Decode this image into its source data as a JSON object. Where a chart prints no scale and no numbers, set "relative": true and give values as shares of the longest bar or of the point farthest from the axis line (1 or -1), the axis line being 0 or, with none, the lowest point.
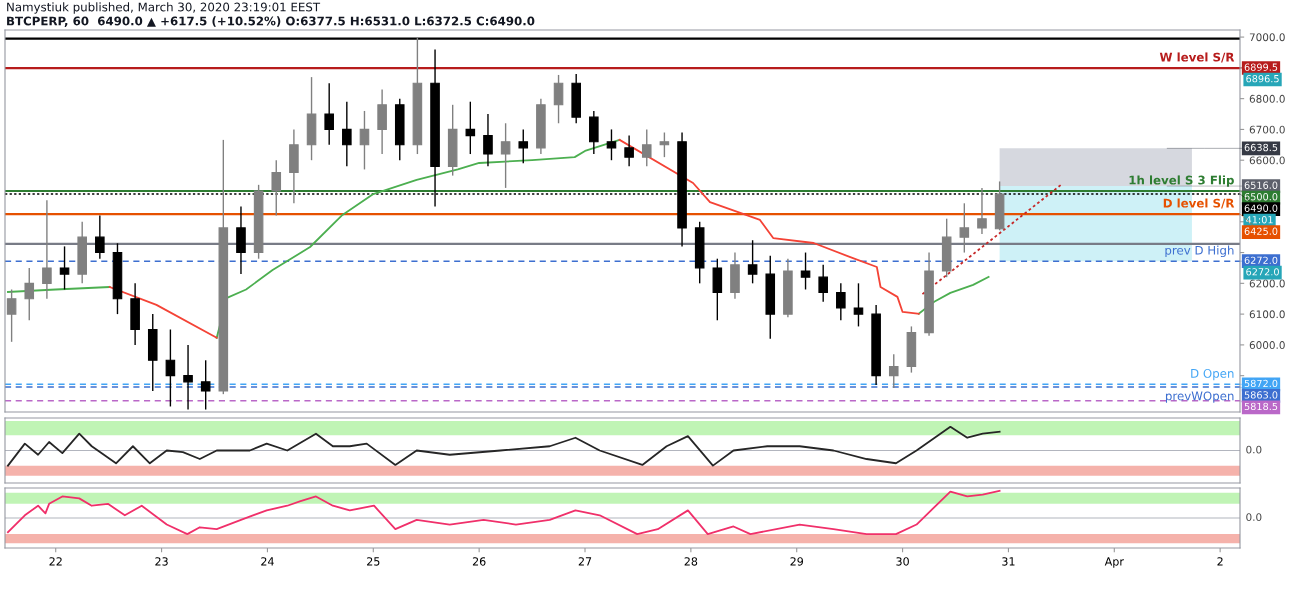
{
  "chart_data": [
    {
      "type": "candlestick",
      "xlim": [
        "2020-03-21T12:30",
        "2020-04-02T04:30"
      ],
      "ylim": [
        5782,
        7023
      ],
      "yticks": [
        {
          "value": 5900,
          "label": null
        },
        {
          "value": 6000,
          "label": "6000.0"
        },
        {
          "value": 6100,
          "label": "6100.0"
        },
        {
          "value": 6200,
          "label": "6200.0"
        },
        {
          "value": 6300,
          "label": null
        },
        {
          "value": 6400,
          "label": null
        },
        {
          "value": 6500,
          "label": null
        },
        {
          "value": 6600,
          "label": "6600.0"
        },
        {
          "value": 6700,
          "label": "6700.0"
        },
        {
          "value": 6800,
          "label": "6800.0"
        },
        {
          "value": 6900,
          "label": null
        },
        {
          "value": 7000,
          "label": "7000.0"
        }
      ],
      "tick_labels": "y",
      "grid": false,
      "colors": [
        "#808080",
        "#808080",
        "#808080",
        "#000000",
        "#808080",
        "#000000",
        "#000000",
        "#000000",
        "#000000",
        "#000000",
        "#000000",
        "#000000",
        "#808080",
        "#000000",
        "#808080",
        "#808080",
        "#808080",
        "#808080",
        "#000000",
        "#000000",
        "#808080",
        "#808080",
        "#000000",
        "#808080",
        "#000000",
        "#808080",
        "#000000",
        "#000000",
        "#808080",
        "#000000",
        "#808080",
        "#808080",
        "#000000",
        "#000000",
        "#000000",
        "#000000",
        "#808080",
        "#808080",
        "#000000",
        "#000000",
        "#000000",
        "#808080",
        "#000000",
        "#000000",
        "#808080",
        "#000000",
        "#000000",
        "#000000",
        "#000000",
        "#000000",
        "#808080",
        "#808080",
        "#808080",
        "#808080",
        "#808080",
        "#808080",
        "#808080"
      ],
      "x": [
        "2020-03-21T14:00",
        "2020-03-21T18:00",
        "2020-03-21T22:00",
        "2020-03-22T02:00",
        "2020-03-22T06:00",
        "2020-03-22T10:00",
        "2020-03-22T14:00",
        "2020-03-22T18:00",
        "2020-03-22T22:00",
        "2020-03-23T02:00",
        "2020-03-23T06:00",
        "2020-03-23T10:00",
        "2020-03-23T14:00",
        "2020-03-23T18:00",
        "2020-03-23T22:00",
        "2020-03-24T02:00",
        "2020-03-24T06:00",
        "2020-03-24T10:00",
        "2020-03-24T14:00",
        "2020-03-24T18:00",
        "2020-03-24T22:00",
        "2020-03-25T02:00",
        "2020-03-25T06:00",
        "2020-03-25T10:00",
        "2020-03-25T14:00",
        "2020-03-25T18:00",
        "2020-03-25T22:00",
        "2020-03-26T02:00",
        "2020-03-26T06:00",
        "2020-03-26T10:00",
        "2020-03-26T14:00",
        "2020-03-26T18:00",
        "2020-03-26T22:00",
        "2020-03-27T02:00",
        "2020-03-27T06:00",
        "2020-03-27T10:00",
        "2020-03-27T14:00",
        "2020-03-27T18:00",
        "2020-03-27T22:00",
        "2020-03-28T02:00",
        "2020-03-28T06:00",
        "2020-03-28T10:00",
        "2020-03-28T14:00",
        "2020-03-28T18:00",
        "2020-03-28T22:00",
        "2020-03-29T02:00",
        "2020-03-29T06:00",
        "2020-03-29T10:00",
        "2020-03-29T14:00",
        "2020-03-29T18:00",
        "2020-03-29T22:00",
        "2020-03-30T02:00",
        "2020-03-30T06:00",
        "2020-03-30T10:00",
        "2020-03-30T14:00",
        "2020-03-30T18:00",
        "2020-03-30T22:00"
      ],
      "ohlc": [
        [
          6100,
          6180,
          6010,
          6150
        ],
        [
          6150,
          6250,
          6080,
          6200
        ],
        [
          6200,
          6470,
          6150,
          6250
        ],
        [
          6250,
          6320,
          6180,
          6230
        ],
        [
          6230,
          6400,
          6200,
          6350
        ],
        [
          6350,
          6420,
          6280,
          6300
        ],
        [
          6300,
          6330,
          6100,
          6150
        ],
        [
          6150,
          6200,
          6000,
          6050
        ],
        [
          6050,
          6100,
          5850,
          5950
        ],
        [
          5950,
          6050,
          5800,
          5900
        ],
        [
          5900,
          6000,
          5790,
          5880
        ],
        [
          5880,
          5950,
          5790,
          5850
        ],
        [
          5850,
          6666,
          5840,
          6380
        ],
        [
          6380,
          6450,
          6230,
          6300
        ],
        [
          6300,
          6520,
          6280,
          6500
        ],
        [
          6500,
          6600,
          6420,
          6560
        ],
        [
          6560,
          6700,
          6460,
          6650
        ],
        [
          6650,
          6870,
          6600,
          6750
        ],
        [
          6750,
          6850,
          6650,
          6700
        ],
        [
          6700,
          6790,
          6580,
          6650
        ],
        [
          6650,
          6760,
          6570,
          6700
        ],
        [
          6700,
          6830,
          6620,
          6780
        ],
        [
          6780,
          6800,
          6600,
          6650
        ],
        [
          6650,
          7000,
          6620,
          6850
        ],
        [
          6850,
          6960,
          6450,
          6580
        ],
        [
          6580,
          6780,
          6550,
          6700
        ],
        [
          6700,
          6790,
          6620,
          6680
        ],
        [
          6680,
          6750,
          6580,
          6620
        ],
        [
          6620,
          6720,
          6510,
          6660
        ],
        [
          6660,
          6700,
          6590,
          6640
        ],
        [
          6640,
          6800,
          6620,
          6780
        ],
        [
          6780,
          6877,
          6720,
          6850
        ],
        [
          6850,
          6880,
          6720,
          6740
        ],
        [
          6740,
          6760,
          6620,
          6660
        ],
        [
          6660,
          6700,
          6600,
          6640
        ],
        [
          6640,
          6680,
          6580,
          6610
        ],
        [
          6610,
          6700,
          6580,
          6650
        ],
        [
          6650,
          6690,
          6610,
          6660
        ],
        [
          6660,
          6690,
          6320,
          6380
        ],
        [
          6380,
          6400,
          6200,
          6250
        ],
        [
          6250,
          6280,
          6080,
          6170
        ],
        [
          6170,
          6300,
          6150,
          6260
        ],
        [
          6260,
          6340,
          6200,
          6230
        ],
        [
          6230,
          6290,
          6020,
          6100
        ],
        [
          6100,
          6280,
          6090,
          6240
        ],
        [
          6240,
          6300,
          6180,
          6220
        ],
        [
          6220,
          6260,
          6140,
          6170
        ],
        [
          6170,
          6200,
          6080,
          6120
        ],
        [
          6120,
          6200,
          6060,
          6100
        ],
        [
          6100,
          6130,
          5870,
          5900
        ],
        [
          5900,
          5970,
          5860,
          5930
        ],
        [
          5930,
          6060,
          5910,
          6040
        ],
        [
          6040,
          6300,
          6030,
          6240
        ],
        [
          6240,
          6410,
          6220,
          6350
        ],
        [
          6350,
          6460,
          6300,
          6380
        ],
        [
          6380,
          6510,
          6360,
          6410
        ],
        [
          6377.5,
          6531,
          6372.5,
          6490
        ]
      ],
      "series": [
        {
          "type": "line",
          "color": "#4caf50",
          "line_style": "solid",
          "x": [
            "2020-03-21T13:10",
            "2020-03-22T00:00",
            "2020-03-22T12:15",
            "2020-03-23T00:00",
            "2020-03-23T12:30",
            "2020-03-23T14:50",
            "2020-03-23T19:10",
            "2020-03-24T01:10",
            "2020-03-24T09:40",
            "2020-03-24T16:50",
            "2020-03-25T00:00",
            "2020-03-25T09:50",
            "2020-03-25T19:10",
            "2020-03-26T00:00",
            "2020-03-26T12:00",
            "2020-03-26T21:40",
            "2020-03-27T00:00",
            "2020-03-27T07:50",
            "2020-03-28T12:00",
            "2020-03-30T03:40",
            "2020-03-30T07:10",
            "2020-03-30T10:50",
            "2020-03-30T16:00",
            "2020-03-30T19:30"
          ],
          "values": [
            6172,
            6180,
            6188,
            null,
            6023,
            6153,
            6180,
            6243,
            6318,
            6420,
            6490,
            6536,
            6570,
            6591,
            6600,
            6610,
            6630,
            6666,
            null,
            6101,
            6140,
            6169,
            6195,
            6221
          ]
        },
        {
          "type": "line",
          "color": "#f44336",
          "line_style": "solid",
          "x": [
            "2020-03-22T12:15",
            "2020-03-22T22:50",
            "2020-03-23T12:30",
            "2020-03-25T00:00",
            "2020-03-27T07:50",
            "2020-03-28T00:30",
            "2020-03-28T04:20",
            "2020-03-28T15:40",
            "2020-03-28T18:40",
            "2020-03-29T03:50",
            "2020-03-29T12:00",
            "2020-03-29T18:10",
            "2020-03-29T19:00",
            "2020-03-29T22:50",
            "2020-03-30T00:00",
            "2020-03-30T03:40"
          ],
          "values": [
            6188,
            6130,
            6023,
            null,
            6666,
            6526,
            6464,
            6406,
            6347,
            6331,
            6286,
            6253,
            6188,
            6156,
            6107,
            6101
          ]
        },
        {
          "type": "line",
          "color": "#c62828",
          "line_style": "dotted",
          "x": [
            "2020-03-30T04:30",
            "2020-03-31T11:50"
          ],
          "values": [
            6165,
            6519
          ]
        }
      ],
      "ref_lines": [
        {
          "axis": "y",
          "value": 6995,
          "color": "#000000",
          "line_style": "solid"
        },
        {
          "axis": "y",
          "value": 6899.5,
          "color": "#b71c1c",
          "line_style": "solid",
          "label": "W level S/R"
        },
        {
          "axis": "y",
          "value": 6500,
          "color": "#2e7d32",
          "line_style": "solid",
          "label": "1h level S 3 Flip"
        },
        {
          "axis": "y",
          "value": 6490,
          "color": "#000000",
          "line_style": "dotted"
        },
        {
          "axis": "y",
          "value": 6425,
          "color": "#e65100",
          "line_style": "solid",
          "label": "D level S/R"
        },
        {
          "axis": "y",
          "value": 6328,
          "color": "#787b86",
          "line_style": "solid"
        },
        {
          "axis": "y",
          "value": 6272,
          "color": "#3d6fd0",
          "line_style": "dashed",
          "label": "prev D High"
        },
        {
          "axis": "y",
          "value": 5872,
          "color": "#42a5f5",
          "line_style": "dashed",
          "label": "D Open"
        },
        {
          "axis": "y",
          "value": 5863,
          "color": "#3d6fd0",
          "line_style": "dashed",
          "label": "prevWOpen"
        },
        {
          "axis": "y",
          "value": 5818.5,
          "color": "#ba68c8",
          "line_style": "dashed"
        }
      ],
      "bands": [
        {
          "axis": "y",
          "from": 6516,
          "to": 6638.5,
          "color": "#d1d4dc"
        },
        {
          "axis": "y",
          "from": 6272,
          "to": 6516,
          "color": "#c9eff6"
        }
      ],
      "annotations": [
        "Namystiuk published, March 30, 2020 23:19:01 EEST",
        "BTCPERP, 60  6490.0 ▲ +617.5 (+10.52%) O:6377.5 H:6531.0 L:6372.5 C:6490.0",
        {
          "text": "6899.5",
          "x": "2020-04-02T04:30",
          "y": 6899.5
        },
        "6896.5",
        {
          "text": "6638.5",
          "x": "2020-04-01T12:00",
          "y": 6638.5
        },
        {
          "text": "6516.0",
          "x": "2020-04-01T12:00",
          "y": 6516
        },
        {
          "text": "6500.0",
          "x": "2020-04-02T04:30",
          "y": 6500
        },
        {
          "text": "6490.0",
          "x": "2020-04-02T04:30",
          "y": 6490
        },
        "41:01",
        {
          "text": "6425.0",
          "x": "2020-04-02T04:30",
          "y": 6425
        },
        {
          "text": "6272.0",
          "x": "2020-04-02T04:30",
          "y": 6272
        },
        "6272.0",
        {
          "text": "5872.0",
          "x": "2020-04-02T04:30",
          "y": 5872
        },
        {
          "text": "5863.0",
          "x": "2020-04-02T04:30",
          "y": 5863
        },
        {
          "text": "5818.5",
          "x": "2020-04-02T04:30",
          "y": 5818.5
        }
      ]
    },
    {
      "type": "line",
      "relative": true,
      "xlim": [
        "2020-03-21T12:30",
        "2020-04-02T04:30"
      ],
      "tick_labels": false,
      "series": [
        {
          "type": "line",
          "color": "#262626",
          "x": [
            "2020-03-21T13:10",
            "2020-03-21T17:00",
            "2020-03-21T20:00",
            "2020-03-21T22:30",
            "2020-03-22T01:30",
            "2020-03-22T05:20",
            "2020-03-22T08:10",
            "2020-03-22T13:40",
            "2020-03-22T17:30",
            "2020-03-22T21:20",
            "2020-03-23T01:10",
            "2020-03-23T04:50",
            "2020-03-23T08:40",
            "2020-03-23T12:30",
            "2020-03-23T20:00",
            "2020-03-23T23:50",
            "2020-03-24T04:30",
            "2020-03-24T11:00",
            "2020-03-24T14:50",
            "2020-03-24T18:40",
            "2020-03-24T22:30",
            "2020-03-25T05:00",
            "2020-03-25T09:50",
            "2020-03-25T17:20",
            "2020-03-26T04:50",
            "2020-03-26T16:00",
            "2020-03-26T21:50",
            "2020-03-27T03:20",
            "2020-03-27T13:00",
            "2020-03-27T18:30",
            "2020-03-27T23:20",
            "2020-03-28T05:00",
            "2020-03-28T09:40",
            "2020-03-28T17:20",
            "2020-03-29T00:40",
            "2020-03-29T08:20",
            "2020-03-29T15:50",
            "2020-03-29T22:30",
            "2020-03-30T03:10",
            "2020-03-30T10:50",
            "2020-03-30T14:40",
            "2020-03-30T18:10",
            "2020-03-30T22:00"
          ],
          "values": [
            -0.64,
            0.29,
            -0.18,
            0.36,
            -0.11,
            0.71,
            0.18,
            -0.54,
            0.18,
            -0.54,
            0,
            -0.07,
            -0.36,
            0,
            0,
            0.29,
            0,
            0.71,
            0.18,
            0.18,
            0.29,
            -0.61,
            0,
            -0.18,
            0,
            0.18,
            0.54,
            0,
            -0.61,
            0.18,
            0.61,
            -0.64,
            0,
            0.18,
            0.18,
            0,
            -0.36,
            -0.54,
            0,
            1,
            0.54,
            0.71,
            0.79
          ]
        }
      ],
      "bands": [
        {
          "axis": "y",
          "from": 0.64,
          "to": 1.25,
          "color": "#b9f3ad"
        },
        {
          "axis": "y",
          "from": -1.07,
          "to": -0.64,
          "color": "#f4aaa2"
        }
      ],
      "annotations": [
        "0.0"
      ]
    },
    {
      "type": "line",
      "relative": true,
      "xlim": [
        "2020-03-21T12:30",
        "2020-04-02T04:30"
      ],
      "tick_labels": "x",
      "xticks": [
        {
          "value": "2020-03-22",
          "label": "22"
        },
        {
          "value": "2020-03-23",
          "label": "23"
        },
        {
          "value": "2020-03-24",
          "label": "24"
        },
        {
          "value": "2020-03-25",
          "label": "25"
        },
        {
          "value": "2020-03-26",
          "label": "26"
        },
        {
          "value": "2020-03-27",
          "label": "27"
        },
        {
          "value": "2020-03-28",
          "label": "28"
        },
        {
          "value": "2020-03-29",
          "label": "29"
        },
        {
          "value": "2020-03-30",
          "label": "30"
        },
        {
          "value": "2020-03-31",
          "label": "31"
        },
        {
          "value": "2020-04-01",
          "label": "Apr"
        },
        {
          "value": "2020-04-02",
          "label": "2"
        }
      ],
      "series": [
        {
          "type": "line",
          "color": "#f0306a",
          "x": [
            "2020-03-21T13:10",
            "2020-03-21T17:00",
            "2020-03-21T20:00",
            "2020-03-21T21:40",
            "2020-03-21T22:30",
            "2020-03-22T01:30",
            "2020-03-22T05:20",
            "2020-03-22T08:10",
            "2020-03-22T11:50",
            "2020-03-22T15:40",
            "2020-03-22T19:30",
            "2020-03-23T01:10",
            "2020-03-23T05:50",
            "2020-03-23T08:40",
            "2020-03-23T12:30",
            "2020-03-23T18:00",
            "2020-03-23T23:50",
            "2020-03-24T04:30",
            "2020-03-24T07:30",
            "2020-03-24T11:00",
            "2020-03-24T14:50",
            "2020-03-24T18:40",
            "2020-03-25T00:10",
            "2020-03-25T05:00",
            "2020-03-25T09:50",
            "2020-03-25T17:20",
            "2020-03-26T01:00",
            "2020-03-26T08:20",
            "2020-03-26T16:00",
            "2020-03-26T21:50",
            "2020-03-27T03:20",
            "2020-03-27T11:50",
            "2020-03-27T16:30",
            "2020-03-27T23:20",
            "2020-03-28T03:50",
            "2020-03-28T09:40",
            "2020-03-28T13:30",
            "2020-03-29T00:40",
            "2020-03-29T08:20",
            "2020-03-29T15:50",
            "2020-03-29T22:30",
            "2020-03-30T03:10",
            "2020-03-30T10:50",
            "2020-03-30T14:40",
            "2020-03-30T18:10",
            "2020-03-30T22:00"
          ],
          "values": [
            -0.52,
            0.1,
            0.45,
            0.17,
            0.52,
            0.79,
            0.72,
            0.45,
            0.52,
            0.1,
            0.45,
            -0.24,
            -0.59,
            -0.34,
            -0.41,
            -0.07,
            0.28,
            0.45,
            0.62,
            0.79,
            0.45,
            0.28,
            0.45,
            -0.41,
            -0.07,
            -0.24,
            -0.07,
            -0.24,
            -0.07,
            0.28,
            0.1,
            -0.59,
            -0.41,
            0.28,
            -0.59,
            -0.31,
            -0.59,
            -0.24,
            -0.41,
            -0.59,
            -0.59,
            -0.24,
            0.97,
            0.79,
            0.86,
            1.0
          ]
        }
      ],
      "bands": [
        {
          "axis": "y",
          "from": 0.52,
          "to": 0.93,
          "color": "#b9f3ad"
        },
        {
          "axis": "y",
          "from": -0.93,
          "to": -0.59,
          "color": "#f4aaa2"
        }
      ],
      "annotations": [
        "0.0"
      ]
    }
  ]
}
